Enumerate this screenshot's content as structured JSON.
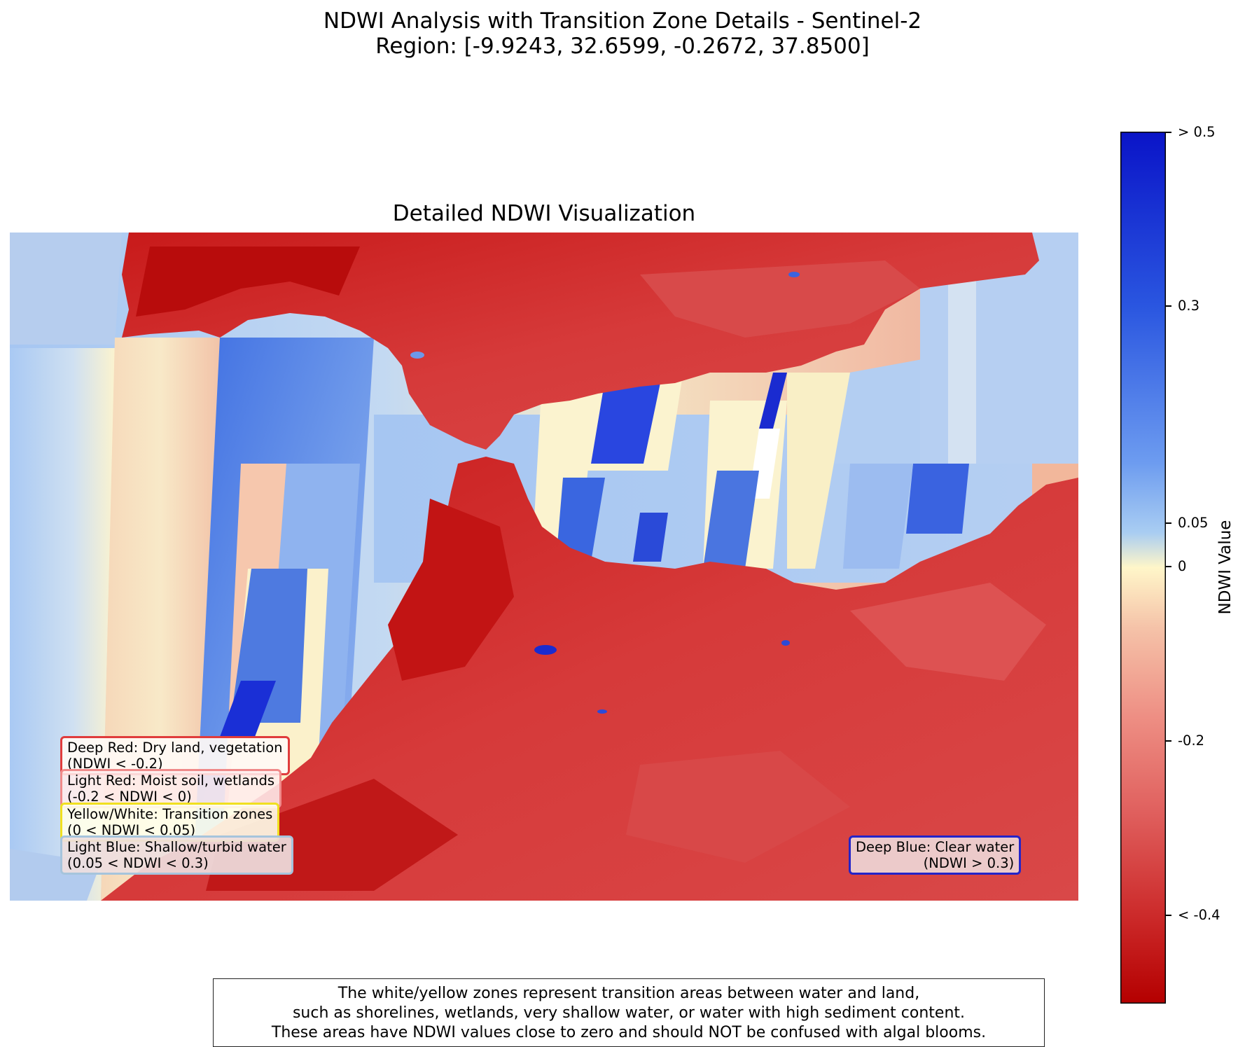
{
  "figure": {
    "title_line1": "NDWI Analysis with Transition Zone Details - Sentinel-2",
    "title_line2": "Region: [-9.9243, 32.6599, -0.2672, 37.8500]",
    "axes_title": "Detailed NDWI Visualization"
  },
  "map": {
    "colors": {
      "deep_red": "#b40000",
      "red": "#d63a3a",
      "light_red": "#f29a92",
      "transition": "#fff6c9",
      "light_blue": "#a8c8f0",
      "mid_blue": "#4d7fe0",
      "deep_blue": "#0a14c8",
      "white": "#ffffff"
    },
    "icons": [
      "ndwi-raster-map"
    ]
  },
  "legend": {
    "deep_red": {
      "line1": "Deep Red: Dry land, vegetation",
      "line2": "(NDWI < -0.2)",
      "border": "#e03c3c"
    },
    "light_red": {
      "line1": "Light Red: Moist soil, wetlands",
      "line2": "(-0.2 < NDWI < 0)",
      "border": "#f08a8a"
    },
    "yellow": {
      "line1": "Yellow/White: Transition zones",
      "line2": "(0 < NDWI < 0.05)",
      "border": "#f0e020"
    },
    "light_blue": {
      "line1": "Light Blue: Shallow/turbid water",
      "line2": "(0.05 < NDWI < 0.3)",
      "border": "#a6c4dc"
    },
    "deep_blue": {
      "line1": "Deep Blue: Clear water",
      "line2": "(NDWI > 0.3)",
      "border": "#2424c8"
    }
  },
  "colorbar": {
    "label": "NDWI Value",
    "ticks": [
      "> 0.5",
      "0.3",
      "0.05",
      "0",
      "-0.2",
      "< -0.4"
    ],
    "colormap": [
      "#0a14c8",
      "#2a56e0",
      "#6d9cf0",
      "#a9cdf2",
      "#fff6c9",
      "#f5c2a8",
      "#ee8f84",
      "#e0605e",
      "#cc2a2a",
      "#b40000"
    ]
  },
  "note": {
    "line1": "The white/yellow zones represent transition areas between water and land,",
    "line2": "such as shorelines, wetlands, very shallow water, or water with high sediment content.",
    "line3": "These areas have NDWI values close to zero and should NOT be confused with algal blooms."
  }
}
